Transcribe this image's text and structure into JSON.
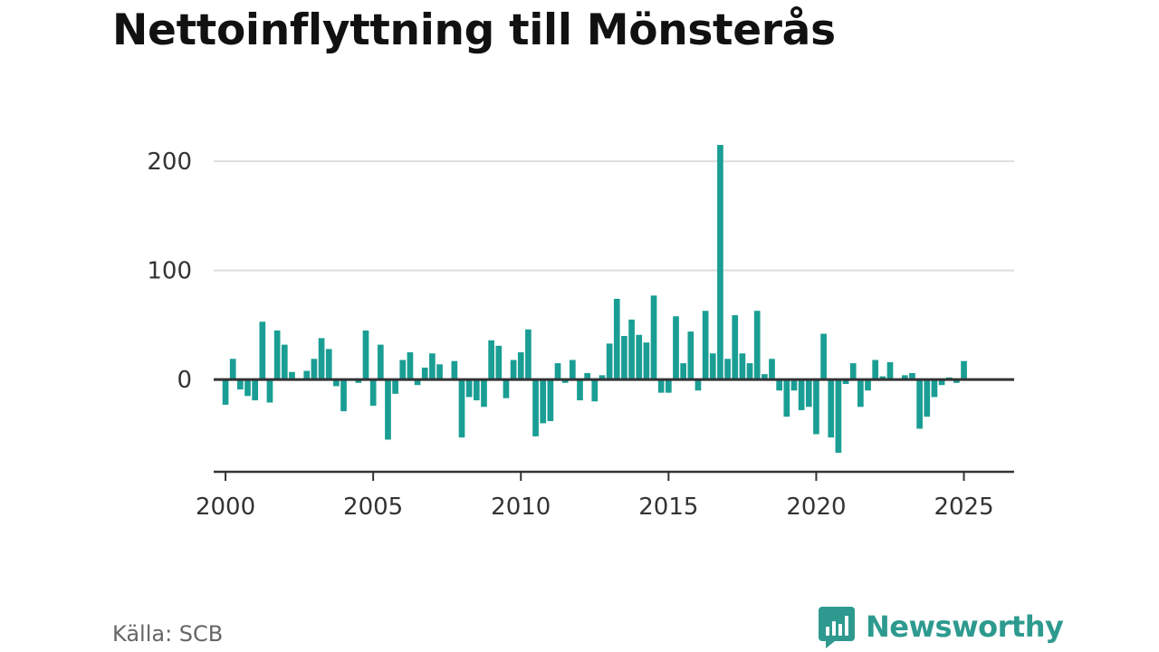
{
  "title": "Nettoinflyttning till Mönsterås",
  "source": "Källa: SCB",
  "brand": {
    "name": "Newsworthy",
    "logo_icon": "newsworthy-bar-chart-bubble-icon"
  },
  "colors": {
    "bar": "#1a9e94",
    "grid": "#dddddd",
    "axis": "#333333",
    "brand": "#2e9a8f"
  },
  "chart_data": {
    "type": "bar",
    "title": "Nettoinflyttning till Mönsterås",
    "xlabel": "",
    "ylabel": "",
    "frequency": "quarterly",
    "start": "2000 Q1",
    "ylim": [
      -77,
      220
    ],
    "xlim": [
      1999.6,
      2026.7
    ],
    "yticks": [
      0,
      100,
      200
    ],
    "xticks": [
      2000,
      2005,
      2010,
      2015,
      2020,
      2025
    ],
    "grid": "horizontal",
    "legend": "none",
    "values": [
      -23,
      19,
      -9,
      -15,
      -19,
      53,
      -21,
      45,
      32,
      7,
      0,
      8,
      19,
      38,
      28,
      -6,
      -29,
      0,
      -3,
      45,
      -24,
      32,
      -55,
      -13,
      18,
      25,
      -5,
      11,
      24,
      14,
      0,
      17,
      -53,
      -16,
      -19,
      -25,
      36,
      31,
      -17,
      18,
      25,
      46,
      -52,
      -40,
      -38,
      15,
      -3,
      18,
      -19,
      6,
      -20,
      4,
      33,
      74,
      40,
      55,
      41,
      34,
      77,
      -12,
      -12,
      58,
      15,
      44,
      -10,
      63,
      24,
      215,
      19,
      59,
      24,
      15,
      63,
      5,
      19,
      -10,
      -34,
      -10,
      -28,
      -25,
      -50,
      42,
      -53,
      -67,
      -4,
      15,
      -25,
      -10,
      18,
      3,
      16,
      0,
      4,
      6,
      -45,
      -34,
      -16,
      -5,
      2,
      -3,
      17
    ]
  }
}
